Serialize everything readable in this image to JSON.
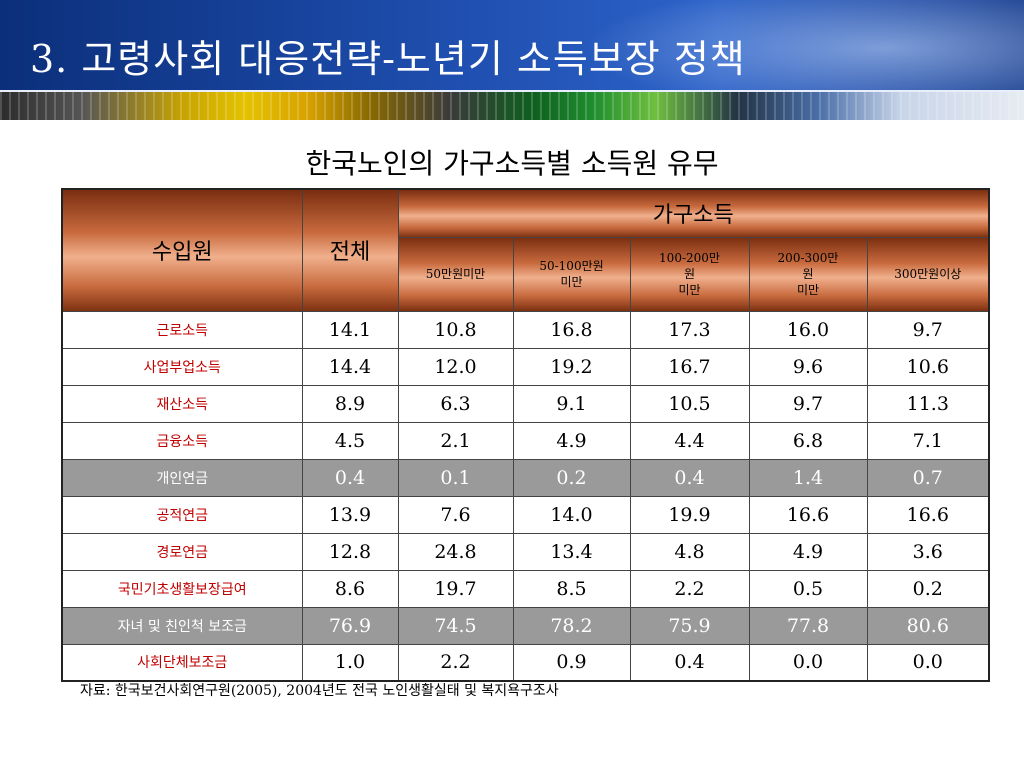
{
  "slide": {
    "title": "3. 고령사회 대응전략-노년기 소득보장 정책",
    "subtitle": "한국노인의 가구소득별 소득원 유무",
    "source": "자료: 한국보건사회연구원(2005), 2004년도 전국 노인생활실태 및 복지욕구조사"
  },
  "table": {
    "header": {
      "col_source": "수입원",
      "col_total": "전체",
      "group": "가구소득",
      "brackets": [
        [
          "50만원미만"
        ],
        [
          "50-100만원",
          "미만"
        ],
        [
          "100-200만",
          "원",
          "미만"
        ],
        [
          "200-300만",
          "원",
          "미만"
        ],
        [
          "300만원이상"
        ]
      ]
    },
    "rows": [
      {
        "label": "근로소득",
        "values": [
          "14.1",
          "10.8",
          "16.8",
          "17.3",
          "16.0",
          "9.7"
        ]
      },
      {
        "label": "사업부업소득",
        "values": [
          "14.4",
          "12.0",
          "19.2",
          "16.7",
          "9.6",
          "10.6"
        ]
      },
      {
        "label": "재산소득",
        "values": [
          "8.9",
          "6.3",
          "9.1",
          "10.5",
          "9.7",
          "11.3"
        ]
      },
      {
        "label": "금융소득",
        "values": [
          "4.5",
          "2.1",
          "4.9",
          "4.4",
          "6.8",
          "7.1"
        ]
      },
      {
        "label": "개인연금",
        "values": [
          "0.4",
          "0.1",
          "0.2",
          "0.4",
          "1.4",
          "0.7"
        ]
      },
      {
        "label": "공적연금",
        "values": [
          "13.9",
          "7.6",
          "14.0",
          "19.9",
          "16.6",
          "16.6"
        ]
      },
      {
        "label": "경로연금",
        "values": [
          "12.8",
          "24.8",
          "13.4",
          "4.8",
          "4.9",
          "3.6"
        ]
      },
      {
        "label": "국민기초생활보장급여",
        "values": [
          "8.6",
          "19.7",
          "8.5",
          "2.2",
          "0.5",
          "0.2"
        ]
      },
      {
        "label": "자녀 및 친인척 보조금",
        "values": [
          "76.9",
          "74.5",
          "78.2",
          "75.9",
          "77.8",
          "80.6"
        ]
      },
      {
        "label": "사회단체보조금",
        "values": [
          "1.0",
          "2.2",
          "0.9",
          "0.4",
          "0.0",
          "0.0"
        ]
      }
    ],
    "highlight_color": "#9a9a9a",
    "label_color": "#c00000",
    "header_color": "#c86a3e"
  }
}
